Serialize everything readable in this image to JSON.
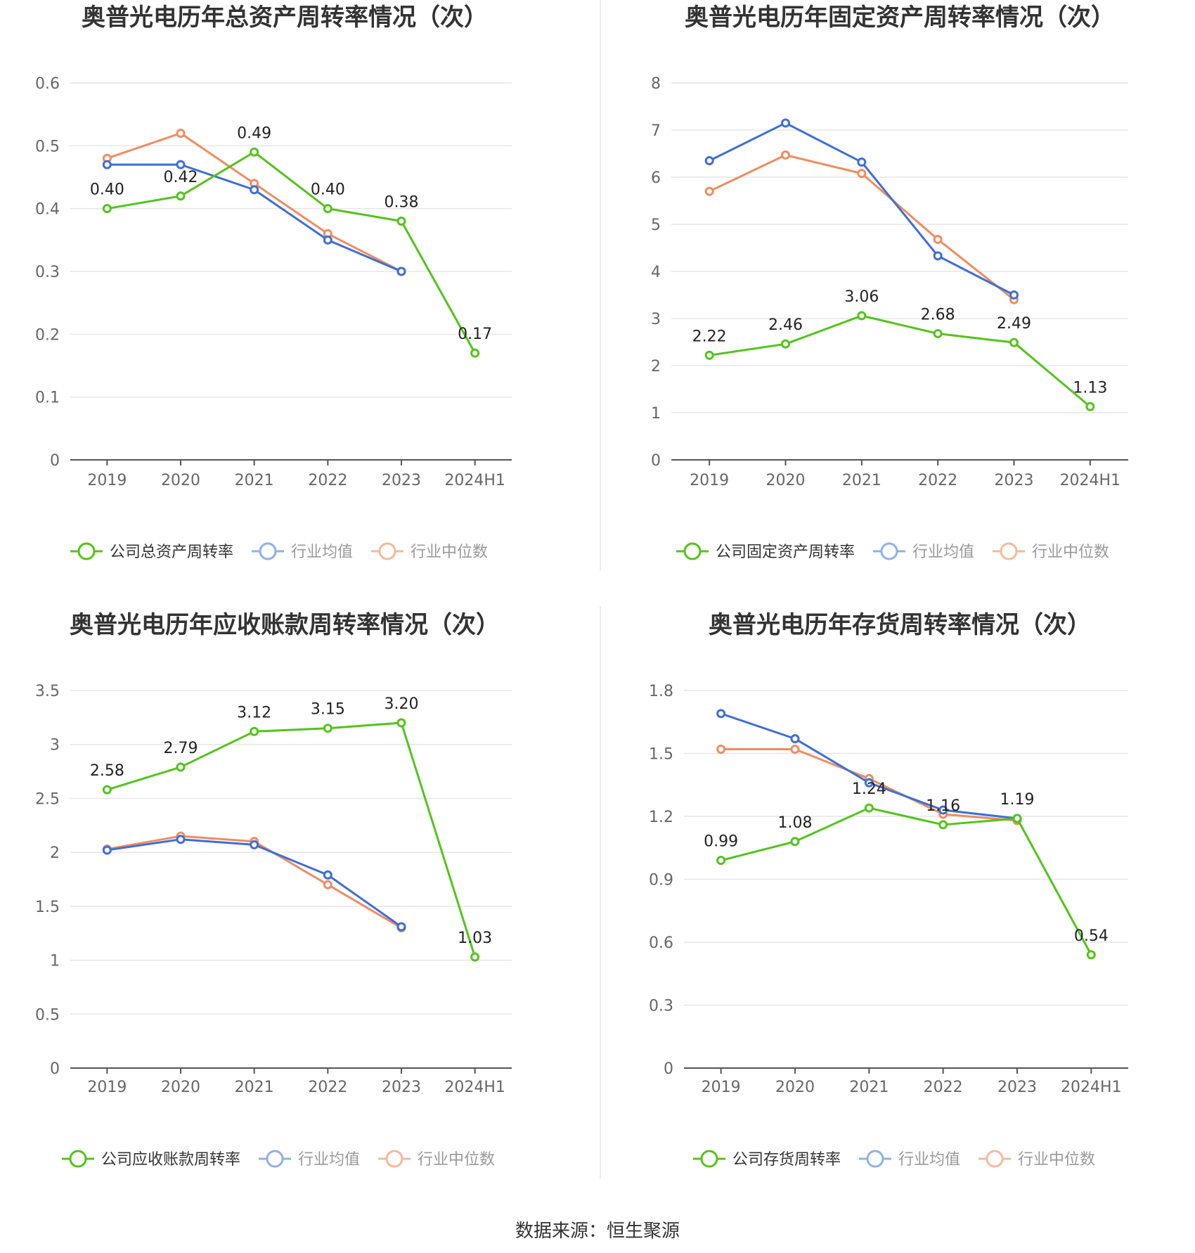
{
  "source": "数据来源：恒生聚源",
  "colors": {
    "company": "#52c41a",
    "average": "#3d6ed8",
    "median": "#f08c5f",
    "legend_average": "#8fb0ec",
    "legend_median": "#f6b99a"
  },
  "chart_data": [
    {
      "type": "line",
      "title": "奥普光电历年总资产周转率情况（次）",
      "categories": [
        "2019",
        "2020",
        "2021",
        "2022",
        "2023",
        "2024H1"
      ],
      "yticks": [
        "0",
        "0.1",
        "0.2",
        "0.3",
        "0.4",
        "0.5",
        "0.6"
      ],
      "ylim": [
        0,
        0.6
      ],
      "series": [
        {
          "name": "公司总资产周转率",
          "role": "company",
          "values": [
            0.4,
            0.42,
            0.49,
            0.4,
            0.38,
            0.17
          ],
          "labels": [
            "0.40",
            "0.42",
            "0.49",
            "0.40",
            "0.38",
            "0.17"
          ]
        },
        {
          "name": "行业均值",
          "role": "average",
          "values": [
            0.47,
            0.47,
            0.43,
            0.35,
            0.3,
            null
          ]
        },
        {
          "name": "行业中位数",
          "role": "median",
          "values": [
            0.48,
            0.52,
            0.44,
            0.36,
            0.3,
            null
          ]
        }
      ]
    },
    {
      "type": "line",
      "title": "奥普光电历年固定资产周转率情况（次）",
      "categories": [
        "2019",
        "2020",
        "2021",
        "2022",
        "2023",
        "2024H1"
      ],
      "yticks": [
        "0",
        "1",
        "2",
        "3",
        "4",
        "5",
        "6",
        "7",
        "8"
      ],
      "ylim": [
        0,
        8
      ],
      "series": [
        {
          "name": "公司固定资产周转率",
          "role": "company",
          "values": [
            2.22,
            2.46,
            3.06,
            2.68,
            2.49,
            1.13
          ],
          "labels": [
            "2.22",
            "2.46",
            "3.06",
            "2.68",
            "2.49",
            "1.13"
          ]
        },
        {
          "name": "行业均值",
          "role": "average",
          "values": [
            6.35,
            7.15,
            6.32,
            4.33,
            3.5,
            null
          ]
        },
        {
          "name": "行业中位数",
          "role": "median",
          "values": [
            5.7,
            6.47,
            6.08,
            4.68,
            3.4,
            null
          ]
        }
      ]
    },
    {
      "type": "line",
      "title": "奥普光电历年应收账款周转率情况（次）",
      "categories": [
        "2019",
        "2020",
        "2021",
        "2022",
        "2023",
        "2024H1"
      ],
      "yticks": [
        "0",
        "0.5",
        "1",
        "1.5",
        "2",
        "2.5",
        "3",
        "3.5"
      ],
      "ylim": [
        0,
        3.5
      ],
      "series": [
        {
          "name": "公司应收账款周转率",
          "role": "company",
          "values": [
            2.58,
            2.79,
            3.12,
            3.15,
            3.2,
            1.03
          ],
          "labels": [
            "2.58",
            "2.79",
            "3.12",
            "3.15",
            "3.20",
            "1.03"
          ]
        },
        {
          "name": "行业均值",
          "role": "average",
          "values": [
            2.02,
            2.12,
            2.07,
            1.79,
            1.31,
            null
          ]
        },
        {
          "name": "行业中位数",
          "role": "median",
          "values": [
            2.03,
            2.15,
            2.1,
            1.7,
            1.3,
            null
          ]
        }
      ]
    },
    {
      "type": "line",
      "title": "奥普光电历年存货周转率情况（次）",
      "categories": [
        "2019",
        "2020",
        "2021",
        "2022",
        "2023",
        "2024H1"
      ],
      "yticks": [
        "0",
        "0.3",
        "0.6",
        "0.9",
        "1.2",
        "1.5",
        "1.8"
      ],
      "ylim": [
        0,
        1.8
      ],
      "series": [
        {
          "name": "公司存货周转率",
          "role": "company",
          "values": [
            0.99,
            1.08,
            1.24,
            1.16,
            1.19,
            0.54
          ],
          "labels": [
            "0.99",
            "1.08",
            "1.24",
            "1.16",
            "1.19",
            "0.54"
          ]
        },
        {
          "name": "行业均值",
          "role": "average",
          "values": [
            1.69,
            1.57,
            1.36,
            1.23,
            1.19,
            null
          ]
        },
        {
          "name": "行业中位数",
          "role": "median",
          "values": [
            1.52,
            1.52,
            1.38,
            1.21,
            1.18,
            null
          ]
        }
      ]
    }
  ]
}
